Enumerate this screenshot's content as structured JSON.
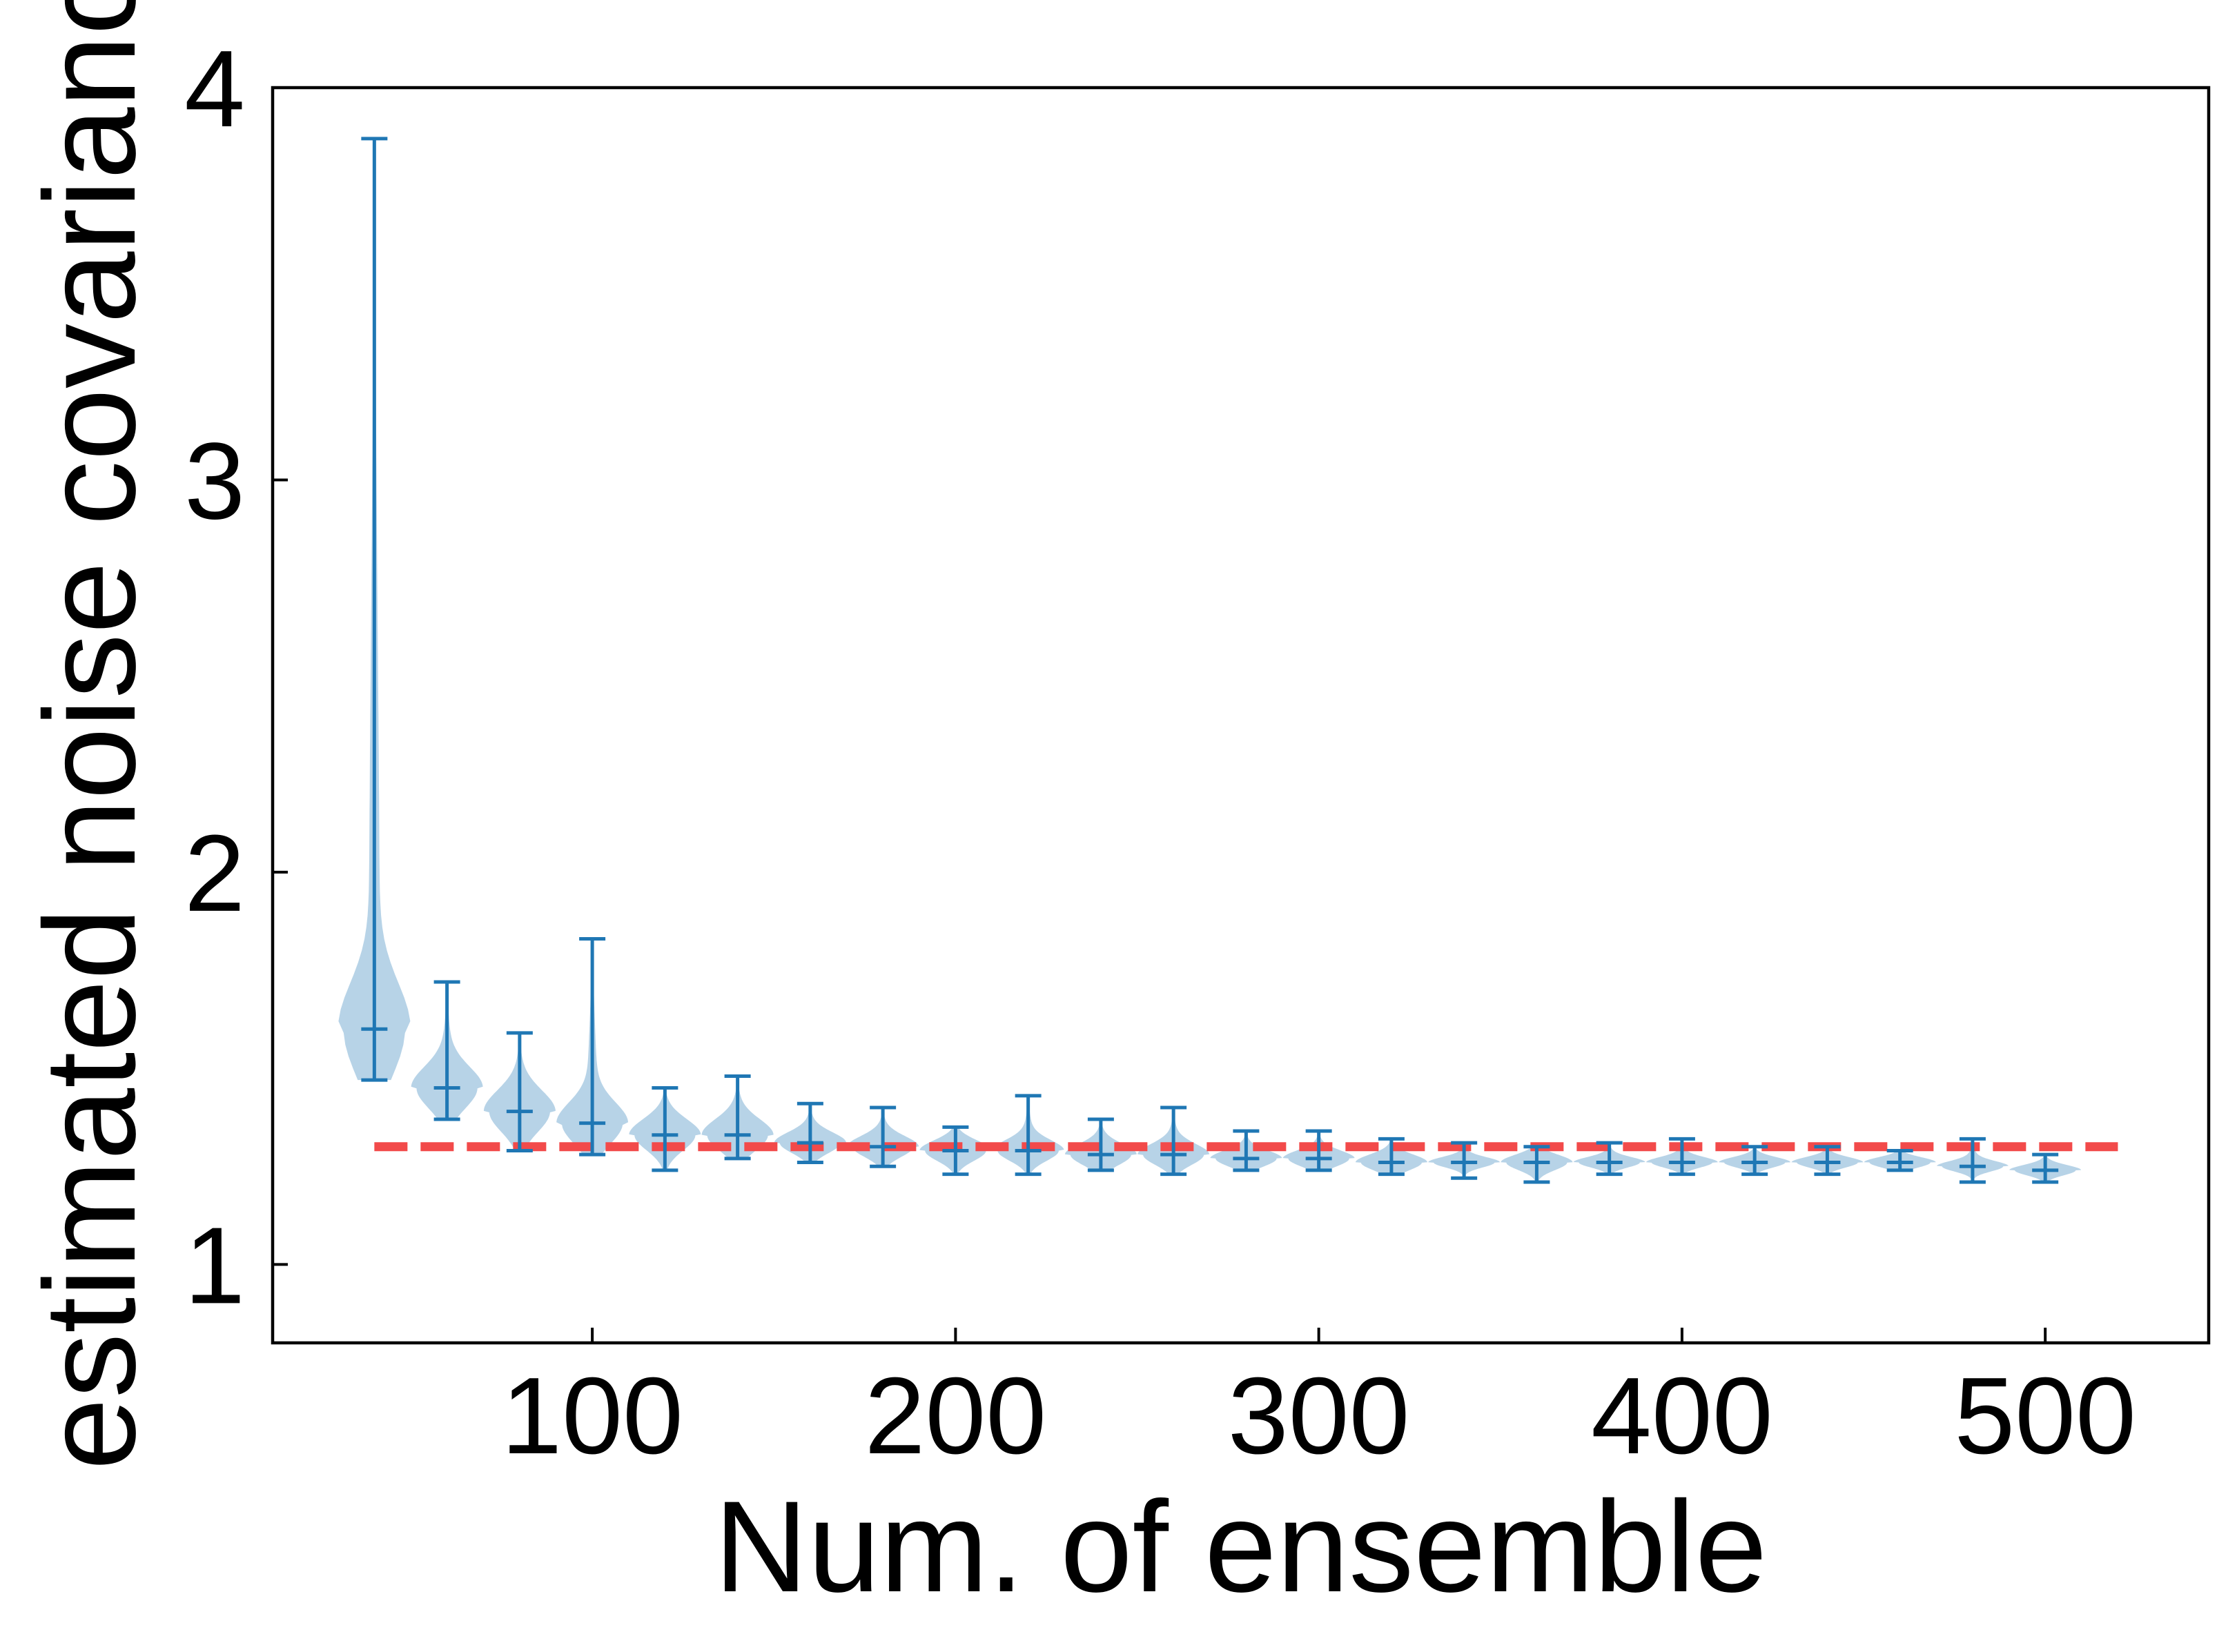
{
  "chart_data": {
    "type": "violin",
    "title": "",
    "xlabel": "Num. of ensemble",
    "ylabel": "estimated noise covariance",
    "xlim": [
      12,
      545
    ],
    "ylim": [
      0.8,
      4.0
    ],
    "xticks": [
      100,
      200,
      300,
      400,
      500
    ],
    "yticks": [
      1,
      2,
      3,
      4
    ],
    "grid": false,
    "legend": "none",
    "reference_line": {
      "y": 1.3,
      "x_range": [
        40,
        520
      ],
      "style": "dashed",
      "color": "#f24a4a"
    },
    "violin_color": "#1f77b4",
    "violins": [
      {
        "x": 40,
        "min": 1.47,
        "max": 3.87,
        "median": 1.6,
        "q1": 1.52,
        "q3": 1.7
      },
      {
        "x": 60,
        "min": 1.37,
        "max": 1.72,
        "median": 1.45,
        "q1": 1.41,
        "q3": 1.49
      },
      {
        "x": 80,
        "min": 1.29,
        "max": 1.59,
        "median": 1.39,
        "q1": 1.35,
        "q3": 1.43
      },
      {
        "x": 100,
        "min": 1.28,
        "max": 1.83,
        "median": 1.36,
        "q1": 1.32,
        "q3": 1.4
      },
      {
        "x": 120,
        "min": 1.24,
        "max": 1.45,
        "median": 1.33,
        "q1": 1.3,
        "q3": 1.36
      },
      {
        "x": 140,
        "min": 1.27,
        "max": 1.48,
        "median": 1.33,
        "q1": 1.3,
        "q3": 1.36
      },
      {
        "x": 160,
        "min": 1.26,
        "max": 1.41,
        "median": 1.31,
        "q1": 1.29,
        "q3": 1.33
      },
      {
        "x": 180,
        "min": 1.25,
        "max": 1.4,
        "median": 1.3,
        "q1": 1.28,
        "q3": 1.32
      },
      {
        "x": 200,
        "min": 1.23,
        "max": 1.35,
        "median": 1.29,
        "q1": 1.27,
        "q3": 1.31
      },
      {
        "x": 220,
        "min": 1.23,
        "max": 1.43,
        "median": 1.29,
        "q1": 1.27,
        "q3": 1.31
      },
      {
        "x": 240,
        "min": 1.24,
        "max": 1.37,
        "median": 1.28,
        "q1": 1.26,
        "q3": 1.3
      },
      {
        "x": 260,
        "min": 1.23,
        "max": 1.4,
        "median": 1.28,
        "q1": 1.26,
        "q3": 1.3
      },
      {
        "x": 280,
        "min": 1.24,
        "max": 1.34,
        "median": 1.27,
        "q1": 1.26,
        "q3": 1.29
      },
      {
        "x": 300,
        "min": 1.24,
        "max": 1.34,
        "median": 1.27,
        "q1": 1.26,
        "q3": 1.29
      },
      {
        "x": 320,
        "min": 1.23,
        "max": 1.32,
        "median": 1.26,
        "q1": 1.25,
        "q3": 1.28
      },
      {
        "x": 340,
        "min": 1.22,
        "max": 1.31,
        "median": 1.26,
        "q1": 1.25,
        "q3": 1.27
      },
      {
        "x": 360,
        "min": 1.21,
        "max": 1.3,
        "median": 1.26,
        "q1": 1.24,
        "q3": 1.27
      },
      {
        "x": 380,
        "min": 1.23,
        "max": 1.31,
        "median": 1.26,
        "q1": 1.25,
        "q3": 1.27
      },
      {
        "x": 400,
        "min": 1.23,
        "max": 1.32,
        "median": 1.26,
        "q1": 1.25,
        "q3": 1.27
      },
      {
        "x": 420,
        "min": 1.23,
        "max": 1.3,
        "median": 1.26,
        "q1": 1.25,
        "q3": 1.27
      },
      {
        "x": 440,
        "min": 1.23,
        "max": 1.3,
        "median": 1.26,
        "q1": 1.25,
        "q3": 1.27
      },
      {
        "x": 460,
        "min": 1.24,
        "max": 1.29,
        "median": 1.26,
        "q1": 1.25,
        "q3": 1.27
      },
      {
        "x": 480,
        "min": 1.21,
        "max": 1.32,
        "median": 1.25,
        "q1": 1.24,
        "q3": 1.26
      },
      {
        "x": 500,
        "min": 1.21,
        "max": 1.28,
        "median": 1.24,
        "q1": 1.23,
        "q3": 1.25
      }
    ]
  }
}
